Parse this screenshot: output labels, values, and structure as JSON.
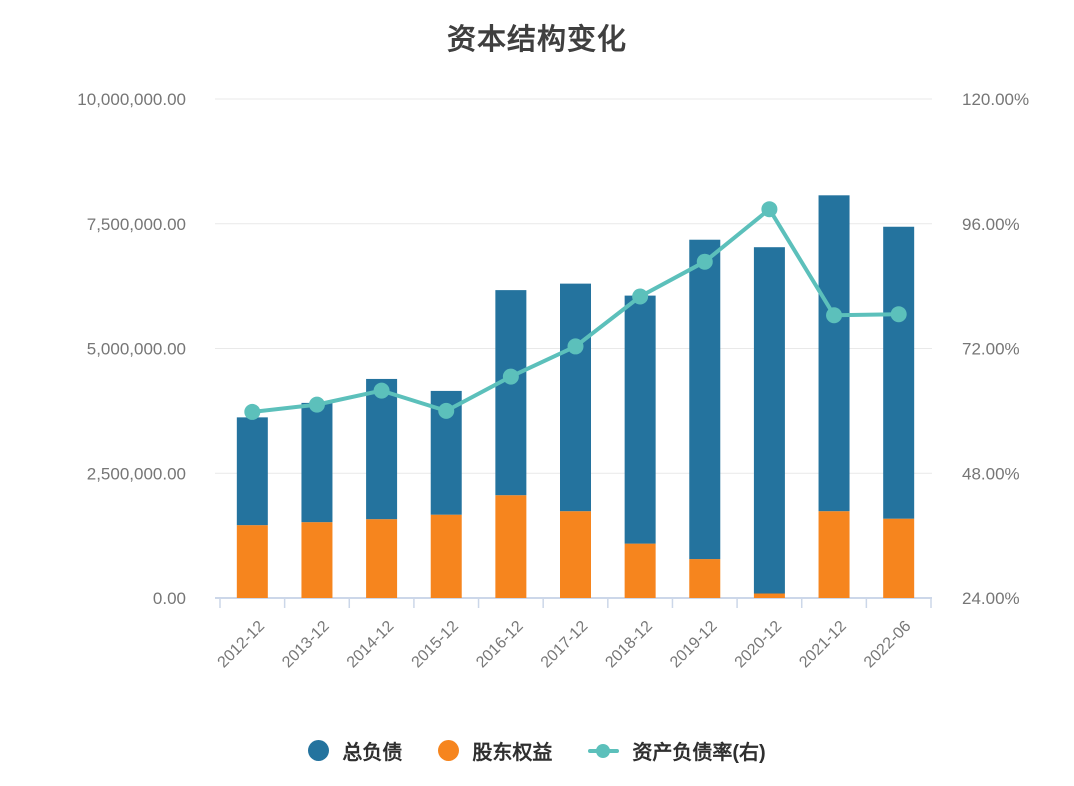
{
  "chart": {
    "title": "资本结构变化",
    "legend": [
      {
        "label": "总负债",
        "color": "#24739e",
        "marker": "circle"
      },
      {
        "label": "股东权益",
        "color": "#f6851e",
        "marker": "circle"
      },
      {
        "label": "资产负债率(右)",
        "color": "#5cc0bb",
        "marker": "line-dot"
      }
    ]
  },
  "chart_data": {
    "type": "bar+line",
    "title": "资本结构变化",
    "categories": [
      "2012-12",
      "2013-12",
      "2014-12",
      "2015-12",
      "2016-12",
      "2017-12",
      "2018-12",
      "2019-12",
      "2020-12",
      "2021-12",
      "2022-06"
    ],
    "series": [
      {
        "name": "总负债",
        "type": "bar",
        "stack": "total",
        "color": "#24739e",
        "values": [
          2160000,
          2390000,
          2810000,
          2480000,
          4110000,
          4560000,
          4970000,
          6400000,
          6940000,
          6330000,
          5850000
        ]
      },
      {
        "name": "股东权益",
        "type": "bar",
        "stack": "total",
        "color": "#f6851e",
        "values": [
          1460000,
          1520000,
          1580000,
          1670000,
          2060000,
          1740000,
          1090000,
          780000,
          90000,
          1740000,
          1590000
        ]
      },
      {
        "name": "资产负债率(右)",
        "type": "line",
        "axis": "right",
        "color": "#5cc0bb",
        "values": [
          59.8,
          61.2,
          63.9,
          60.0,
          66.6,
          72.4,
          82.0,
          88.7,
          98.8,
          78.4,
          78.6
        ]
      }
    ],
    "left_axis": {
      "min": 0,
      "max": 10000000,
      "tick_labels": [
        "10,000,000.00",
        "7,500,000.00",
        "5,000,000.00",
        "2,500,000.00",
        "0.00"
      ],
      "tick_values": [
        10000000,
        7500000,
        5000000,
        2500000,
        0
      ]
    },
    "right_axis": {
      "min": 24,
      "max": 120,
      "tick_labels": [
        "120.00%",
        "96.00%",
        "72.00%",
        "48.00%",
        "24.00%"
      ],
      "tick_values": [
        120,
        96,
        72,
        48,
        24
      ]
    },
    "grid": {
      "horizontal": true,
      "vertical": false
    },
    "legend_position": "bottom",
    "colors": {
      "grid_line": "#e9e9e9",
      "axis_line": "#ccd7e9",
      "tick_label": "#767676",
      "title_text": "#3f3f3f",
      "legend_text": "#2f2f2f"
    }
  }
}
